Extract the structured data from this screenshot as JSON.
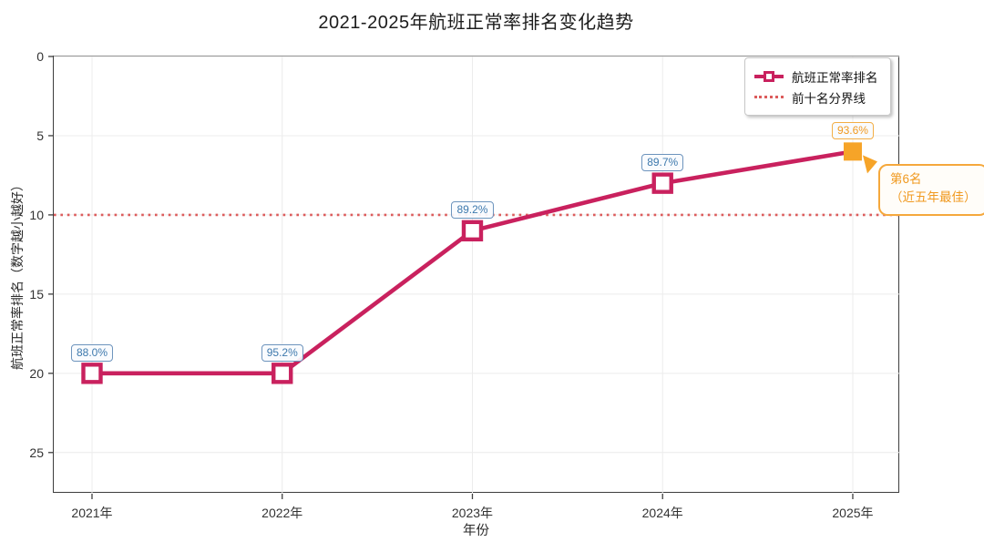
{
  "chart_data": {
    "type": "line",
    "title": "2021-2025年航班正常率排名变化趋势",
    "xlabel": "年份",
    "ylabel": "航班正常率排名（数字越小越好）",
    "categories": [
      "2021年",
      "2022年",
      "2023年",
      "2024年",
      "2025年"
    ],
    "series": [
      {
        "name": "航班正常率排名",
        "values": [
          20,
          20,
          11,
          8,
          6
        ],
        "point_labels": [
          "88.0%",
          "95.2%",
          "89.2%",
          "89.7%",
          "93.6%"
        ],
        "color": "#c9215e",
        "marker": "open-square",
        "highlight_index": 4,
        "highlight_color": "#f6a428"
      }
    ],
    "reference_line": {
      "name": "前十名分界线",
      "value": 10,
      "color": "#dc5c5c",
      "style": "dotted"
    },
    "yticks": [
      0,
      5,
      10,
      15,
      20,
      25
    ],
    "ylim": [
      0,
      27.6
    ],
    "y_inverted": true,
    "grid": true,
    "legend_position": "top-right",
    "annotation": {
      "lines": [
        "第6名",
        "（近五年最佳）"
      ],
      "color": "#f0991f",
      "target": "2025年"
    },
    "label_colors": {
      "default": "#3e79ad",
      "highlight": "#f0991f"
    }
  },
  "legend": {
    "items": [
      {
        "label": "航班正常率排名",
        "swatch": "line-with-square-marker",
        "color": "#c9215e"
      },
      {
        "label": "前十名分界线",
        "swatch": "dotted-line",
        "color": "#dc5c5c"
      }
    ]
  }
}
